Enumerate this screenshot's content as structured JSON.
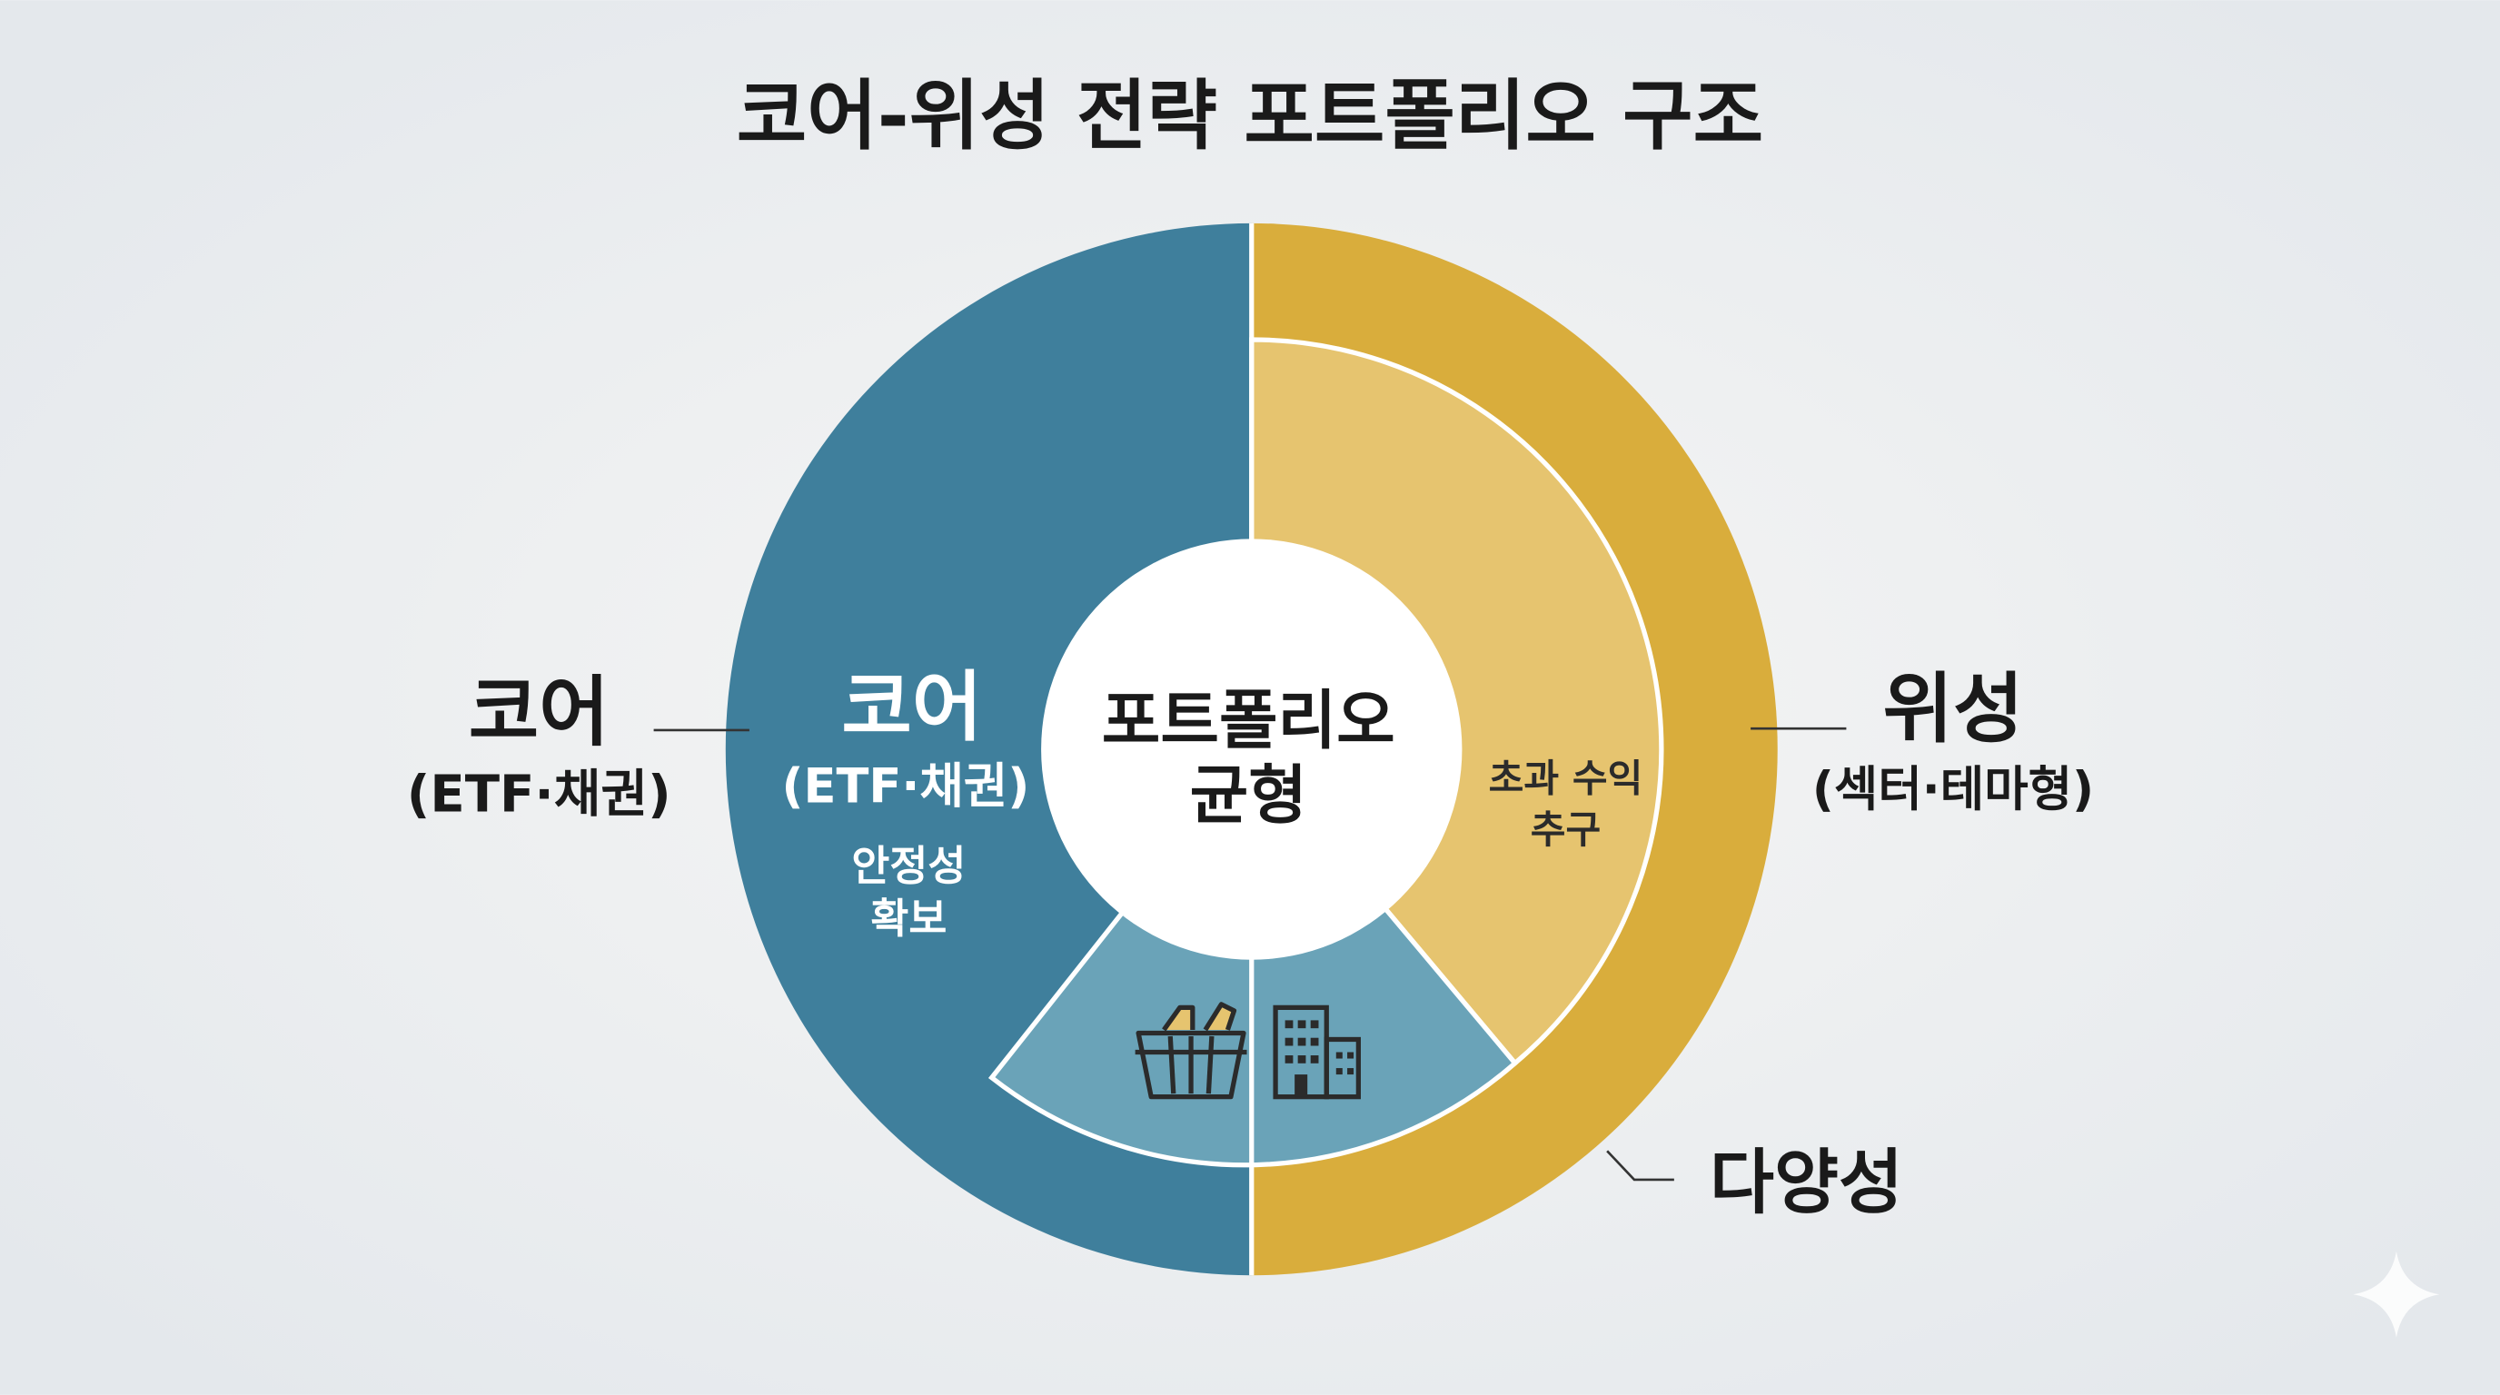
{
  "title": "코어-위성 전략 포트폴리오 구조",
  "core": {
    "label": "코어",
    "sublabel": "(ETF·채권)",
    "inner_label": "코어",
    "inner_sublabel": "(ETF·채권)",
    "inner_note": [
      "안정성",
      "확보"
    ]
  },
  "center": {
    "lines": [
      "포트폴리오",
      "균형"
    ]
  },
  "satellite": {
    "label": "위성",
    "sublabel": "(섹터·테마형)",
    "inner_note": [
      "초과 수익",
      "추구"
    ]
  },
  "diversity": {
    "label": "다양성"
  }
}
